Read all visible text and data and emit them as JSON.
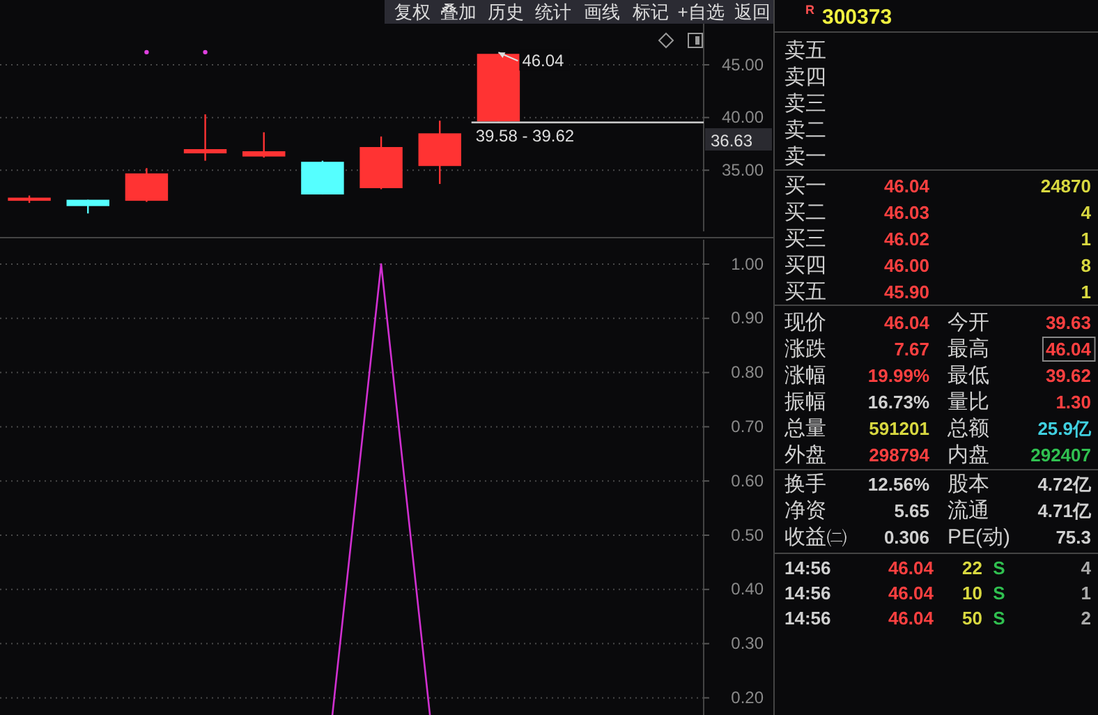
{
  "chart_data": [
    {
      "type": "candlestick",
      "categories": [
        null,
        null,
        null,
        null,
        null,
        null,
        null,
        null,
        null,
        null,
        null,
        null
      ],
      "ohlc": [
        [
          32.1,
          32.6,
          31.9,
          32.4
        ],
        [
          32.2,
          32.2,
          30.9,
          31.6
        ],
        [
          32.1,
          35.2,
          32.0,
          34.7
        ],
        [
          36.6,
          40.3,
          35.9,
          37.0
        ],
        [
          36.3,
          38.6,
          36.2,
          36.8
        ],
        [
          35.8,
          35.9,
          32.7,
          32.7
        ],
        [
          33.3,
          38.2,
          33.2,
          37.2
        ],
        [
          35.4,
          39.7,
          33.7,
          38.5
        ],
        [
          39.63,
          46.04,
          39.62,
          46.04
        ],
        null,
        null,
        null
      ],
      "colors": [
        "#ff3333",
        "#55ffff",
        "#ff3333",
        "#ff3333",
        "#ff3333",
        "#55ffff",
        "#ff3333",
        "#ff3333",
        "#ff3333",
        null,
        null,
        null
      ],
      "series": [
        {
          "type": "scatter",
          "color": "#e040e0",
          "values": [
            null,
            null,
            46.2,
            46.2,
            null,
            null,
            null,
            null,
            null,
            null,
            null,
            null
          ]
        }
      ],
      "marker": "circle",
      "ylim": [
        29.2,
        48.9
      ],
      "yticks": [
        {
          "value": 35,
          "label": "35.00"
        },
        {
          "value": 40,
          "label": "40.00"
        },
        {
          "value": 45,
          "label": "45.00"
        }
      ],
      "grid": "y",
      "tick_labels": "y",
      "bands": [
        {
          "axis": "y",
          "from": 39.58,
          "to": 39.62,
          "label": "39.58 - 39.62",
          "color": "#c8c8c8"
        }
      ],
      "annotations": [
        "46.04",
        "36.63"
      ]
    },
    {
      "type": "line",
      "categories": [
        null,
        null,
        null,
        null,
        null,
        null,
        null,
        null,
        null,
        null,
        null,
        null
      ],
      "values": [
        null,
        null,
        null,
        null,
        null,
        0,
        1,
        0,
        null,
        null,
        null,
        null
      ],
      "color": "#d030d0",
      "ylim": [
        0,
        1.045
      ],
      "yticks": [
        {
          "value": 0.2,
          "label": "0.20"
        },
        {
          "value": 0.3,
          "label": "0.30"
        },
        {
          "value": 0.4,
          "label": "0.40"
        },
        {
          "value": 0.5,
          "label": "0.50"
        },
        {
          "value": 0.6,
          "label": "0.60"
        },
        {
          "value": 0.7,
          "label": "0.70"
        },
        {
          "value": 0.8,
          "label": "0.80"
        },
        {
          "value": 0.9,
          "label": "0.90"
        },
        {
          "value": 1.0,
          "label": "1.00"
        }
      ],
      "grid": "y",
      "tick_labels": "y"
    },
    {
      "type": "other",
      "title": "300373",
      "annotations": [
        "R",
        "卖五",
        "卖四",
        "卖三",
        "卖二",
        "卖一",
        "买一",
        "46.04",
        "24870",
        "买二",
        "46.03",
        "4",
        "买三",
        "46.02",
        "1",
        "买四",
        "46.00",
        "8",
        "买五",
        "45.90",
        "1",
        "现价",
        "46.04",
        "今开",
        "39.63",
        "涨跌",
        "7.67",
        "最高",
        "46.04",
        "涨幅",
        "19.99%",
        "最低",
        "39.62",
        "振幅",
        "16.73%",
        "量比",
        "1.30",
        "总量",
        "591201",
        "总额",
        "25.9亿",
        "外盘",
        "298794",
        "内盘",
        "292407",
        "换手",
        "12.56%",
        "股本",
        "4.72亿",
        "净资",
        "5.65",
        "流通",
        "4.71亿",
        "收益㈡",
        "0.306",
        "PE(动)",
        "75.3",
        "14:56",
        "46.04",
        "22",
        "S",
        "4",
        "14:56",
        "46.04",
        "10",
        "S",
        "1",
        "14:56",
        "46.04",
        "50",
        "S",
        "2"
      ]
    },
    {
      "type": "other",
      "annotations": [
        "复权",
        "叠加",
        "历史",
        "统计",
        "画线",
        "标记",
        "+自选",
        "返回"
      ]
    }
  ]
}
